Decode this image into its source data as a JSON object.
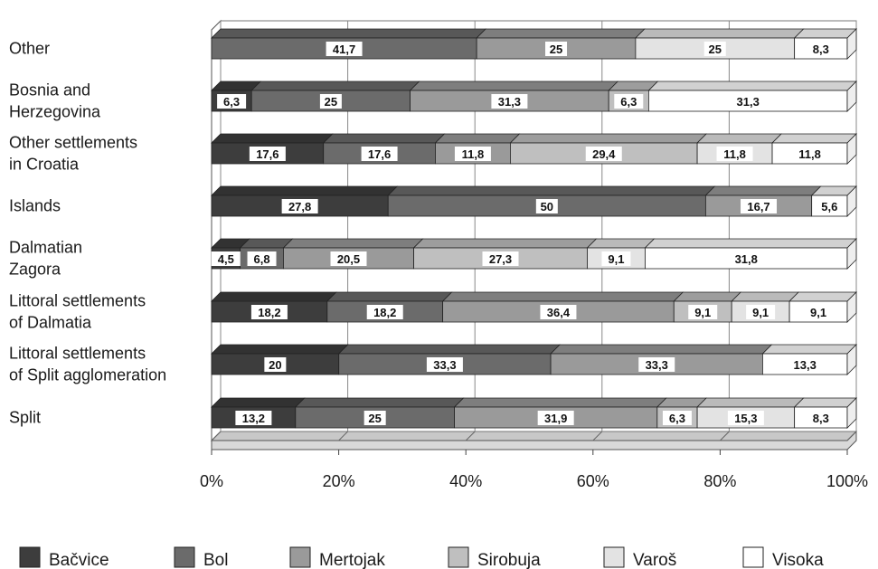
{
  "chart_data": {
    "type": "bar",
    "orientation": "horizontal",
    "stacked": "percent",
    "categories": [
      "Other",
      "Bosnia and\nHerzegovina",
      "Other settlements\nin Croatia",
      "Islands",
      "Dalmatian\nZagora",
      "Littoral settlements\nof Dalmatia",
      "Littoral settlements\nof Split agglomeration",
      "Split"
    ],
    "series": [
      {
        "name": "Bačvice",
        "color": "#3d3d3d",
        "values": [
          0,
          6.3,
          17.6,
          27.8,
          4.5,
          18.2,
          20,
          13.2
        ]
      },
      {
        "name": "Bol",
        "color": "#6b6b6b",
        "values": [
          41.7,
          25,
          17.6,
          50,
          6.8,
          18.2,
          33.3,
          25
        ]
      },
      {
        "name": "Mertojak",
        "color": "#9a9a9a",
        "values": [
          25,
          31.3,
          11.8,
          16.7,
          20.5,
          36.4,
          33.3,
          31.9
        ]
      },
      {
        "name": "Sirobuja",
        "color": "#bfbfbf",
        "values": [
          0,
          6.3,
          29.4,
          0,
          27.3,
          9.1,
          0,
          6.3
        ]
      },
      {
        "name": "Varoš",
        "color": "#e3e3e3",
        "values": [
          25,
          0,
          11.8,
          0,
          9.1,
          9.1,
          0,
          15.3
        ]
      },
      {
        "name": "Visoka",
        "color": "#ffffff",
        "values": [
          8.3,
          31.3,
          11.8,
          5.6,
          31.8,
          9.1,
          13.3,
          8.3
        ]
      }
    ],
    "data_labels": [
      [
        "",
        "41,7",
        "25",
        "",
        "25",
        "8,3"
      ],
      [
        "6,3",
        "25",
        "31,3",
        "6,3",
        "",
        "31,3"
      ],
      [
        "17,6",
        "17,6",
        "11,8",
        "29,4",
        "11,8",
        "11,8"
      ],
      [
        "27,8",
        "50",
        "16,7",
        "",
        "",
        "5,6"
      ],
      [
        "4,5",
        "6,8",
        "20,5",
        "27,3",
        "9,1",
        "31,8"
      ],
      [
        "18,2",
        "18,2",
        "36,4",
        "9,1",
        "9,1",
        "9,1"
      ],
      [
        "20",
        "33,3",
        "33,3",
        "",
        "",
        "13,3"
      ],
      [
        "13,2",
        "25",
        "31,9",
        "6,3",
        "15,3",
        "8,3"
      ]
    ],
    "x_ticks": [
      "0%",
      "20%",
      "40%",
      "60%",
      "80%",
      "100%"
    ],
    "xlim": [
      0,
      100
    ],
    "grid": true,
    "legend_position": "bottom",
    "title": "",
    "xlabel": "",
    "ylabel": ""
  }
}
